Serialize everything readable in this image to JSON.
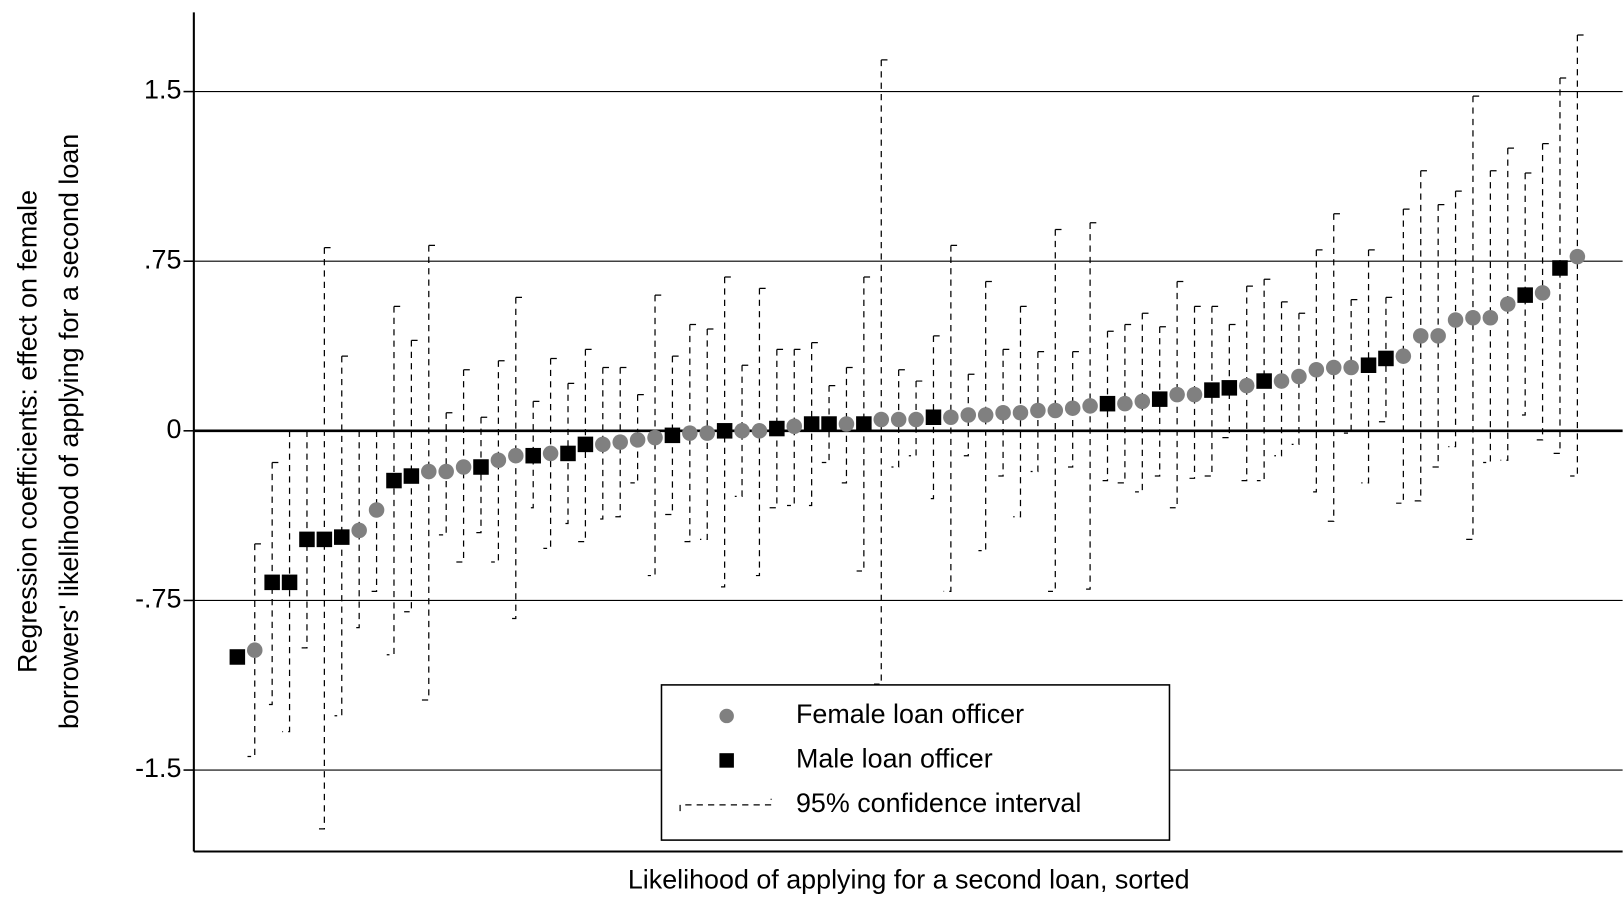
{
  "chart_data": {
    "type": "scatter",
    "ylabel": [
      "Regression coefficients: effect on female",
      "borrowers' likelihood of applying for a second loan"
    ],
    "xlabel": "Likelihood of applying for a second loan, sorted",
    "ci_label": "95% confidence interval",
    "xlim": [
      -1.5,
      80.6
    ],
    "ylim": [
      -1.86,
      1.85
    ],
    "yticks": [
      -1.5,
      {
        "value": -0.75,
        "label": "-.75"
      },
      0,
      {
        "value": 0.75,
        "label": ".75"
      },
      1.5
    ],
    "grid": true,
    "legend": "bottom",
    "series": [
      {
        "name": "Female loan officer",
        "color": "#808080",
        "marker": "circle",
        "x": [
          2,
          8,
          9,
          12,
          13,
          14,
          16,
          17,
          19,
          22,
          23,
          24,
          25,
          27,
          28,
          30,
          31,
          33,
          36,
          38,
          39,
          40,
          42,
          43,
          44,
          45,
          46,
          47,
          48,
          49,
          50,
          52,
          53,
          55,
          56,
          59,
          61,
          62,
          63,
          64,
          65,
          68,
          69,
          70,
          71,
          72,
          73,
          74,
          76,
          78
        ],
        "values": [
          -0.97,
          -0.44,
          -0.35,
          -0.18,
          -0.18,
          -0.16,
          -0.13,
          -0.11,
          -0.1,
          -0.06,
          -0.05,
          -0.04,
          -0.03,
          -0.01,
          -0.01,
          0,
          0,
          0.02,
          0.03,
          0.05,
          0.05,
          0.05,
          0.06,
          0.07,
          0.07,
          0.08,
          0.08,
          0.09,
          0.09,
          0.1,
          0.11,
          0.12,
          0.13,
          0.16,
          0.16,
          0.2,
          0.22,
          0.24,
          0.27,
          0.28,
          0.28,
          0.33,
          0.42,
          0.42,
          0.49,
          0.5,
          0.5,
          0.56,
          0.61,
          0.77
        ],
        "lower": [
          -1.44,
          -0.87,
          -0.71,
          -1.19,
          -0.46,
          -0.58,
          -0.58,
          -0.83,
          -0.52,
          -0.39,
          -0.38,
          -0.23,
          -0.64,
          -0.49,
          -0.48,
          -0.29,
          -0.64,
          -0.33,
          -0.23,
          -1.12,
          -0.16,
          -0.11,
          -0.71,
          -0.11,
          -0.53,
          -0.2,
          -0.38,
          -0.18,
          -0.71,
          -0.16,
          -0.7,
          -0.23,
          -0.27,
          -0.34,
          -0.21,
          -0.22,
          -0.11,
          -0.06,
          -0.27,
          -0.4,
          -0.01,
          -0.32,
          -0.31,
          -0.16,
          -0.07,
          -0.48,
          -0.14,
          -0.13,
          -0.04,
          -0.2
        ],
        "upper": [
          -0.5,
          0,
          0,
          0.82,
          0.08,
          0.27,
          0.31,
          0.59,
          0.32,
          0.28,
          0.28,
          0.16,
          0.6,
          0.47,
          0.45,
          0.29,
          0.63,
          0.36,
          0.28,
          1.64,
          0.27,
          0.22,
          0.82,
          0.25,
          0.66,
          0.36,
          0.55,
          0.35,
          0.89,
          0.35,
          0.92,
          0.47,
          0.52,
          0.66,
          0.55,
          0.64,
          0.57,
          0.52,
          0.8,
          0.96,
          0.58,
          0.98,
          1.15,
          1.0,
          1.06,
          1.48,
          1.15,
          1.25,
          1.27,
          1.75
        ]
      },
      {
        "name": "Male loan officer",
        "color": "#000000",
        "marker": "square",
        "x": [
          1,
          3,
          4,
          5,
          6,
          7,
          10,
          11,
          15,
          18,
          20,
          21,
          26,
          29,
          32,
          34,
          35,
          37,
          41,
          51,
          54,
          57,
          58,
          60,
          66,
          67,
          75,
          77
        ],
        "values": [
          -1.0,
          -0.67,
          -0.67,
          -0.48,
          -0.48,
          -0.47,
          -0.22,
          -0.2,
          -0.16,
          -0.11,
          -0.1,
          -0.06,
          -0.02,
          0,
          0.01,
          0.03,
          0.03,
          0.03,
          0.06,
          0.12,
          0.14,
          0.18,
          0.19,
          0.22,
          0.29,
          0.32,
          0.6,
          0.72
        ],
        "lower": [
          null,
          -1.21,
          -1.33,
          -0.96,
          -1.76,
          -1.26,
          -0.99,
          -0.8,
          -0.45,
          -0.34,
          -0.41,
          -0.49,
          -0.37,
          -0.69,
          -0.34,
          -0.33,
          -0.14,
          -0.62,
          -0.3,
          -0.22,
          -0.2,
          -0.2,
          -0.03,
          -0.22,
          -0.23,
          0.04,
          0.07,
          -0.1
        ],
        "upper": [
          null,
          -0.14,
          0,
          0,
          0.81,
          0.33,
          0.55,
          0.4,
          0.06,
          0.13,
          0.21,
          0.36,
          0.33,
          0.68,
          0.36,
          0.39,
          0.2,
          0.68,
          0.42,
          0.44,
          0.46,
          0.55,
          0.47,
          0.67,
          0.8,
          0.59,
          1.14,
          1.56
        ]
      }
    ]
  }
}
